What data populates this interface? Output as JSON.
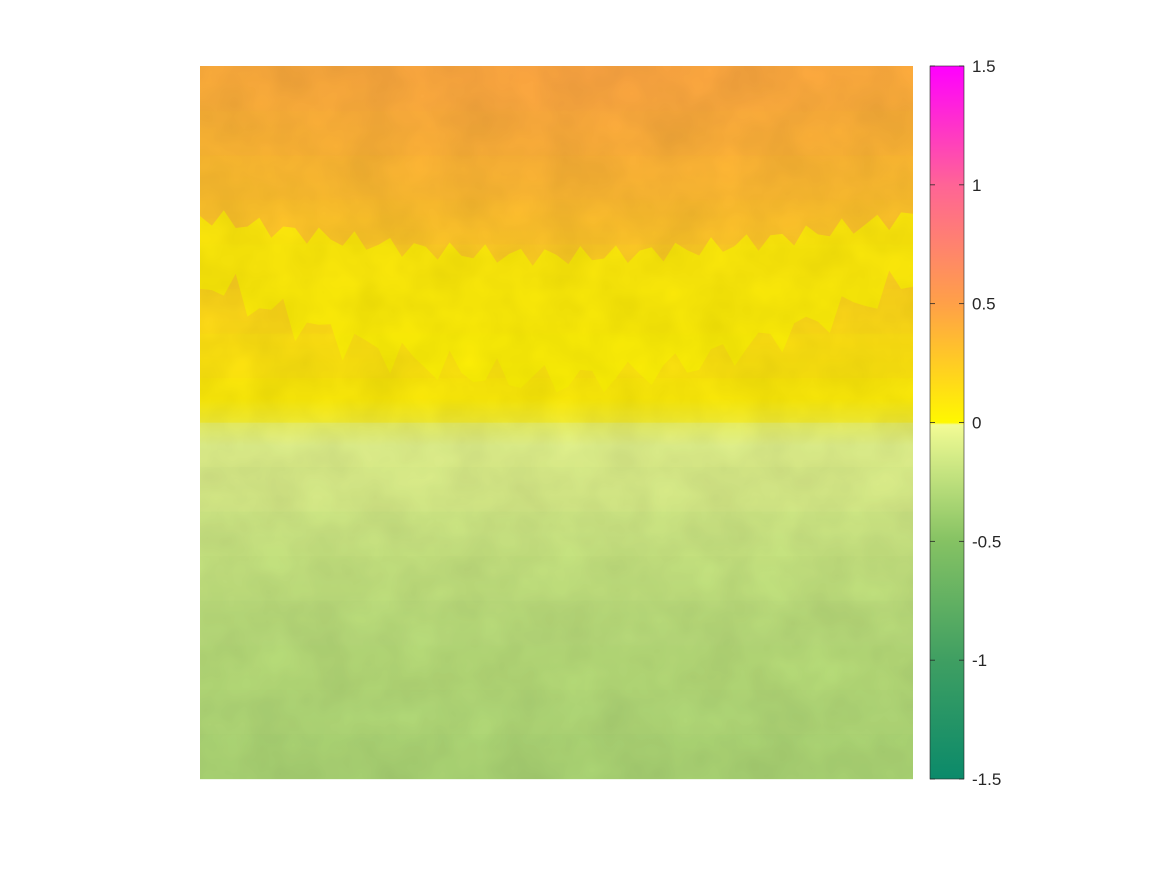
{
  "chart_data": {
    "type": "heatmap",
    "title": "",
    "xlabel": "",
    "ylabel": "",
    "axes_visible": false,
    "grid": false,
    "colorbar": {
      "placement": "right",
      "clim": [
        -1.5,
        1.5
      ],
      "ticks": [
        1.5,
        1,
        0.5,
        0,
        -0.5,
        -1,
        -1.5
      ],
      "tick_labels": [
        "1.5",
        "1",
        "0.5",
        "0",
        "-0.5",
        "-1",
        "-1.5"
      ],
      "colormap": [
        {
          "value": -1.5,
          "color": "#0b8a6a"
        },
        {
          "value": -1.0,
          "color": "#3f9f62"
        },
        {
          "value": -0.5,
          "color": "#85c263"
        },
        {
          "value": -0.01,
          "color": "#f2fb94"
        },
        {
          "value": 0.0,
          "color": "#fff800"
        },
        {
          "value": 0.5,
          "color": "#ffa048"
        },
        {
          "value": 1.0,
          "color": "#ff6496"
        },
        {
          "value": 1.5,
          "color": "#ff00ff"
        }
      ]
    },
    "field": {
      "description_rows": "mean value per row band, top to bottom",
      "row_values": [
        0.42,
        0.38,
        0.34,
        0.3,
        0.24,
        0.18,
        0.12,
        0.06,
        -0.08,
        -0.12,
        -0.18,
        -0.22,
        -0.26,
        -0.28,
        -0.3,
        -0.32
      ]
    }
  }
}
